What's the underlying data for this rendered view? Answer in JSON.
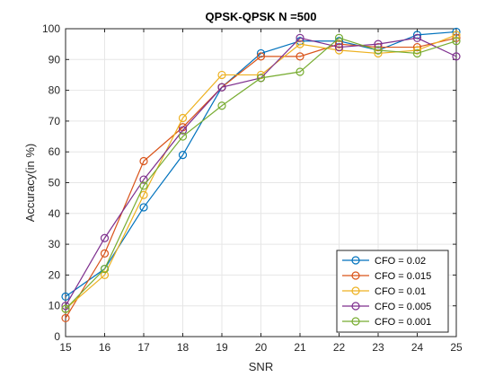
{
  "chart_data": {
    "type": "line",
    "title": "QPSK-QPSK N =500",
    "xlabel": "SNR",
    "ylabel": "Accuracy(in %)",
    "xlim": [
      15,
      25
    ],
    "ylim": [
      0,
      100
    ],
    "x_ticks": [
      15,
      16,
      17,
      18,
      19,
      20,
      21,
      22,
      23,
      24,
      25
    ],
    "y_ticks": [
      0,
      10,
      20,
      30,
      40,
      50,
      60,
      70,
      80,
      90,
      100
    ],
    "grid": true,
    "legend_position": "bottom-right",
    "x": [
      15,
      16,
      17,
      18,
      19,
      20,
      21,
      22,
      23,
      24,
      25
    ],
    "series": [
      {
        "name": "CFO = 0.02",
        "color": "#0072BD",
        "values": [
          13,
          22,
          42,
          59,
          81,
          92,
          96,
          96,
          93,
          98,
          99
        ]
      },
      {
        "name": "CFO = 0.015",
        "color": "#D95319",
        "values": [
          6,
          27,
          57,
          68,
          81,
          91,
          91,
          95,
          94,
          94,
          97
        ]
      },
      {
        "name": "CFO = 0.01",
        "color": "#EDB120",
        "values": [
          9,
          20,
          46,
          71,
          85,
          85,
          95,
          93,
          92,
          93,
          98
        ]
      },
      {
        "name": "CFO = 0.005",
        "color": "#7E2F8E",
        "values": [
          10,
          32,
          51,
          67,
          81,
          84,
          97,
          94,
          95,
          97,
          91
        ]
      },
      {
        "name": "CFO = 0.001",
        "color": "#77AC30",
        "values": [
          9,
          22,
          49,
          65,
          75,
          84,
          86,
          97,
          93,
          92,
          96
        ]
      }
    ]
  }
}
